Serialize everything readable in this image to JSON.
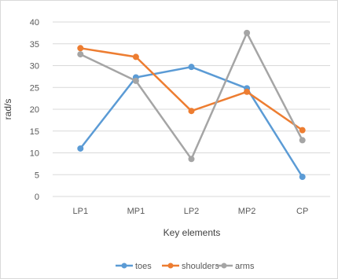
{
  "chart_data": {
    "type": "line",
    "title": "",
    "xlabel": "Key elements",
    "ylabel": "rad/s",
    "categories": [
      "LP1",
      "MP1",
      "LP2",
      "MP2",
      "CP"
    ],
    "ylim": [
      0,
      40
    ],
    "yticks": [
      0,
      5,
      10,
      15,
      20,
      25,
      30,
      35,
      40
    ],
    "grid": "horizontal",
    "legend_position": "bottom",
    "series": [
      {
        "name": "toes",
        "color": "#5b9bd5",
        "values": [
          11,
          27.3,
          29.7,
          24.8,
          4.5
        ]
      },
      {
        "name": "shoulders",
        "color": "#ed7d31",
        "values": [
          34,
          32,
          19.6,
          24,
          15.2
        ]
      },
      {
        "name": "arms",
        "color": "#a5a5a5",
        "values": [
          32.6,
          26.5,
          8.6,
          37.5,
          12.9
        ]
      }
    ]
  }
}
